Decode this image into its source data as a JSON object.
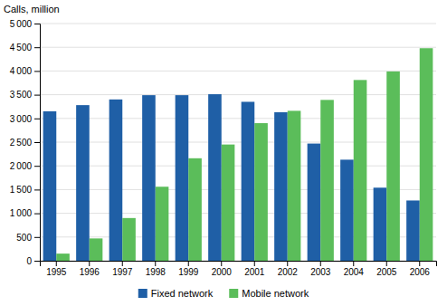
{
  "chart_data": {
    "type": "bar",
    "ylabel": "Calls, million",
    "categories": [
      "1995",
      "1996",
      "1997",
      "1998",
      "1999",
      "2000",
      "2001",
      "2002",
      "2003",
      "2004",
      "2005",
      "2006"
    ],
    "series": [
      {
        "name": "Fixed network",
        "color": "#1F5FA6",
        "values": [
          3150,
          3280,
          3400,
          3490,
          3490,
          3510,
          3350,
          3130,
          2470,
          2130,
          1540,
          1270
        ]
      },
      {
        "name": "Mobile network",
        "color": "#5BBD5A",
        "values": [
          150,
          470,
          900,
          1560,
          2160,
          2450,
          2900,
          3160,
          3390,
          3810,
          3990,
          4480
        ]
      }
    ],
    "ylim": [
      0,
      5000
    ],
    "yticks": [
      0,
      500,
      {
        "value": 1000,
        "label": "1 000"
      },
      {
        "value": 1500,
        "label": "1 500"
      },
      {
        "value": 2000,
        "label": "2 000"
      },
      {
        "value": 2500,
        "label": "2 500"
      },
      {
        "value": 3000,
        "label": "3 000"
      },
      {
        "value": 3500,
        "label": "3 500"
      },
      {
        "value": 4000,
        "label": "4 000"
      },
      {
        "value": 4500,
        "label": "4 500"
      },
      {
        "value": 5000,
        "label": "5 000"
      }
    ],
    "grid": true,
    "legend": "bottom"
  }
}
